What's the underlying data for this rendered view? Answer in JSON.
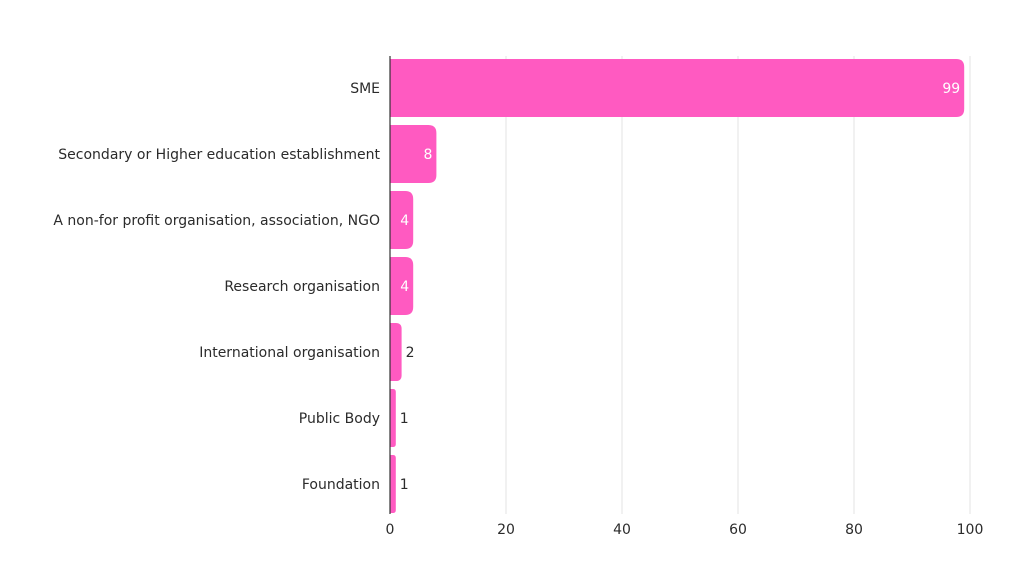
{
  "chart_data": {
    "type": "bar",
    "orientation": "horizontal",
    "title": "",
    "xlabel": "",
    "ylabel": "",
    "categories": [
      "SME",
      "Secondary or Higher education establishment",
      "A non-for profit organisation, association, NGO",
      "Research organisation",
      "International organisation",
      "Public Body",
      "Foundation"
    ],
    "values": [
      99,
      8,
      4,
      4,
      2,
      1,
      1
    ],
    "data_labels": [
      "99",
      "8",
      "4",
      "4",
      "2",
      "1",
      "1"
    ],
    "xlim": [
      0,
      100
    ],
    "x_ticks": [
      0,
      20,
      40,
      60,
      80,
      100
    ],
    "x_tick_labels": [
      "0",
      "20",
      "40",
      "60",
      "80",
      "100"
    ],
    "grid": "vertical",
    "legend": "none",
    "colors": {
      "bar": "#ff5ac1",
      "grid": "#e3e3e3",
      "axis": "#333333",
      "text": "#2b2b2b",
      "label_inside": "#ffffff"
    }
  }
}
